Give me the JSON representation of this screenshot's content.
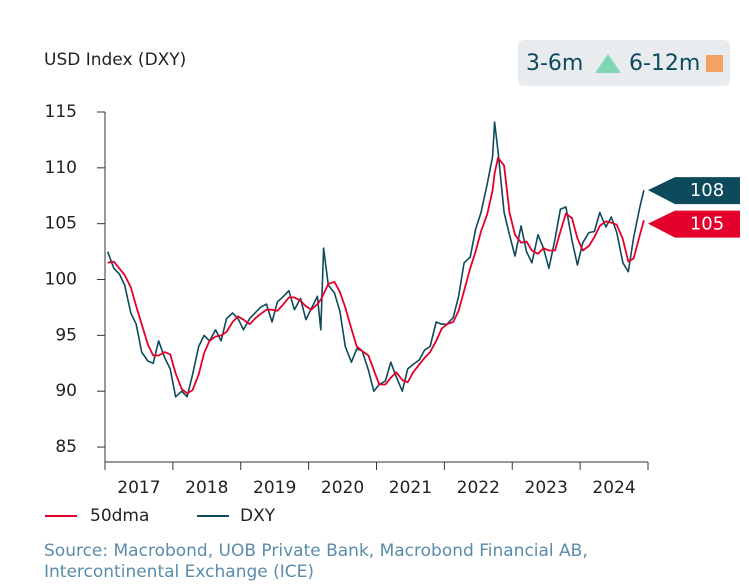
{
  "chart_data": {
    "type": "line",
    "title": "USD Index (DXY)",
    "x": [
      2017.04,
      2017.13,
      2017.21,
      2017.29,
      2017.38,
      2017.46,
      2017.54,
      2017.63,
      2017.71,
      2017.79,
      2017.88,
      2017.96,
      2018.04,
      2018.13,
      2018.21,
      2018.29,
      2018.38,
      2018.46,
      2018.54,
      2018.63,
      2018.71,
      2018.79,
      2018.88,
      2018.96,
      2019.04,
      2019.13,
      2019.21,
      2019.29,
      2019.38,
      2019.46,
      2019.54,
      2019.63,
      2019.71,
      2019.79,
      2019.88,
      2019.96,
      2020.04,
      2020.13,
      2020.18,
      2020.22,
      2020.29,
      2020.38,
      2020.46,
      2020.54,
      2020.63,
      2020.71,
      2020.79,
      2020.88,
      2020.96,
      2021.04,
      2021.13,
      2021.21,
      2021.29,
      2021.38,
      2021.46,
      2021.54,
      2021.63,
      2021.71,
      2021.79,
      2021.88,
      2021.96,
      2022.04,
      2022.13,
      2022.21,
      2022.29,
      2022.38,
      2022.46,
      2022.54,
      2022.63,
      2022.71,
      2022.74,
      2022.79,
      2022.88,
      2022.96,
      2023.04,
      2023.13,
      2023.21,
      2023.29,
      2023.38,
      2023.46,
      2023.54,
      2023.63,
      2023.71,
      2023.79,
      2023.88,
      2023.96,
      2024.04,
      2024.13,
      2024.21,
      2024.29,
      2024.38,
      2024.46,
      2024.54,
      2024.63,
      2024.71,
      2024.79,
      2024.88,
      2024.94
    ],
    "series": [
      {
        "name": "50dma",
        "color": "#e4002b",
        "end_label": 105,
        "values": [
          101.5,
          101.6,
          101.0,
          100.4,
          99.3,
          97.6,
          96.0,
          94.2,
          93.2,
          93.2,
          93.5,
          93.3,
          91.6,
          90.2,
          89.8,
          90.1,
          91.5,
          93.4,
          94.5,
          94.9,
          95.0,
          95.3,
          96.2,
          96.7,
          96.4,
          96.0,
          96.5,
          96.9,
          97.3,
          97.3,
          97.2,
          97.8,
          98.4,
          98.4,
          98.1,
          97.6,
          97.3,
          97.8,
          98.2,
          98.7,
          99.6,
          99.8,
          98.9,
          97.5,
          95.6,
          94.0,
          93.6,
          93.2,
          91.9,
          90.6,
          90.6,
          91.2,
          91.7,
          91.0,
          90.8,
          91.7,
          92.4,
          93.0,
          93.5,
          94.5,
          95.6,
          96.0,
          96.2,
          97.2,
          99.0,
          101.0,
          102.5,
          104.3,
          105.8,
          108.0,
          109.5,
          110.9,
          110.2,
          106.0,
          104.0,
          103.3,
          103.4,
          102.6,
          102.3,
          102.8,
          102.6,
          102.6,
          104.3,
          105.9,
          105.5,
          103.7,
          102.6,
          103.0,
          103.8,
          104.8,
          105.2,
          105.1,
          104.9,
          103.6,
          101.6,
          101.9,
          104.0,
          105.3
        ]
      },
      {
        "name": "DXY",
        "color": "#0d4a5c",
        "end_label": 108,
        "values": [
          102.5,
          101.0,
          100.5,
          99.5,
          97.0,
          96.0,
          93.5,
          92.7,
          92.5,
          94.5,
          93.0,
          92.0,
          89.5,
          90.0,
          89.5,
          91.5,
          94.0,
          95.0,
          94.5,
          95.5,
          94.5,
          96.5,
          97.0,
          96.5,
          95.5,
          96.5,
          97.0,
          97.5,
          97.8,
          96.2,
          98.0,
          98.5,
          99.0,
          97.3,
          98.3,
          96.4,
          97.4,
          98.5,
          95.5,
          102.8,
          99.5,
          98.8,
          97.2,
          94.0,
          92.6,
          93.8,
          93.6,
          91.9,
          90.0,
          90.6,
          90.9,
          92.6,
          91.3,
          90.0,
          92.0,
          92.4,
          92.8,
          93.7,
          94.0,
          96.2,
          96.0,
          96.0,
          96.6,
          98.5,
          101.5,
          102.0,
          104.5,
          106.0,
          108.5,
          111.0,
          114.1,
          111.5,
          106.0,
          104.0,
          102.1,
          104.8,
          102.5,
          101.5,
          104.0,
          102.8,
          101.0,
          103.6,
          106.3,
          106.5,
          103.5,
          101.3,
          103.3,
          104.2,
          104.3,
          106.0,
          104.7,
          105.6,
          104.2,
          101.5,
          100.7,
          103.8,
          106.5,
          108.0
        ]
      }
    ],
    "xlim": [
      2017,
      2025
    ],
    "xticks": [
      2017,
      2018,
      2019,
      2020,
      2021,
      2022,
      2023,
      2024,
      2025
    ],
    "xtick_labels": [
      {
        "value": 2017.5,
        "label": "2017"
      },
      {
        "value": 2018.5,
        "label": "2018"
      },
      {
        "value": 2019.5,
        "label": "2019"
      },
      {
        "value": 2020.5,
        "label": "2020"
      },
      {
        "value": 2021.5,
        "label": "2021"
      },
      {
        "value": 2022.5,
        "label": "2022"
      },
      {
        "value": 2023.5,
        "label": "2023"
      },
      {
        "value": 2024.5,
        "label": "2024"
      }
    ],
    "ylim": [
      83.66,
      115
    ],
    "yticks": [
      85,
      90,
      95,
      100,
      105,
      110,
      115
    ],
    "badge": [
      "3-6m",
      "6-12m"
    ],
    "source": [
      "Source: Macrobond, UOB Private Bank, Macrobond Financial AB,",
      "Intercontinental Exchange (ICE)"
    ]
  }
}
